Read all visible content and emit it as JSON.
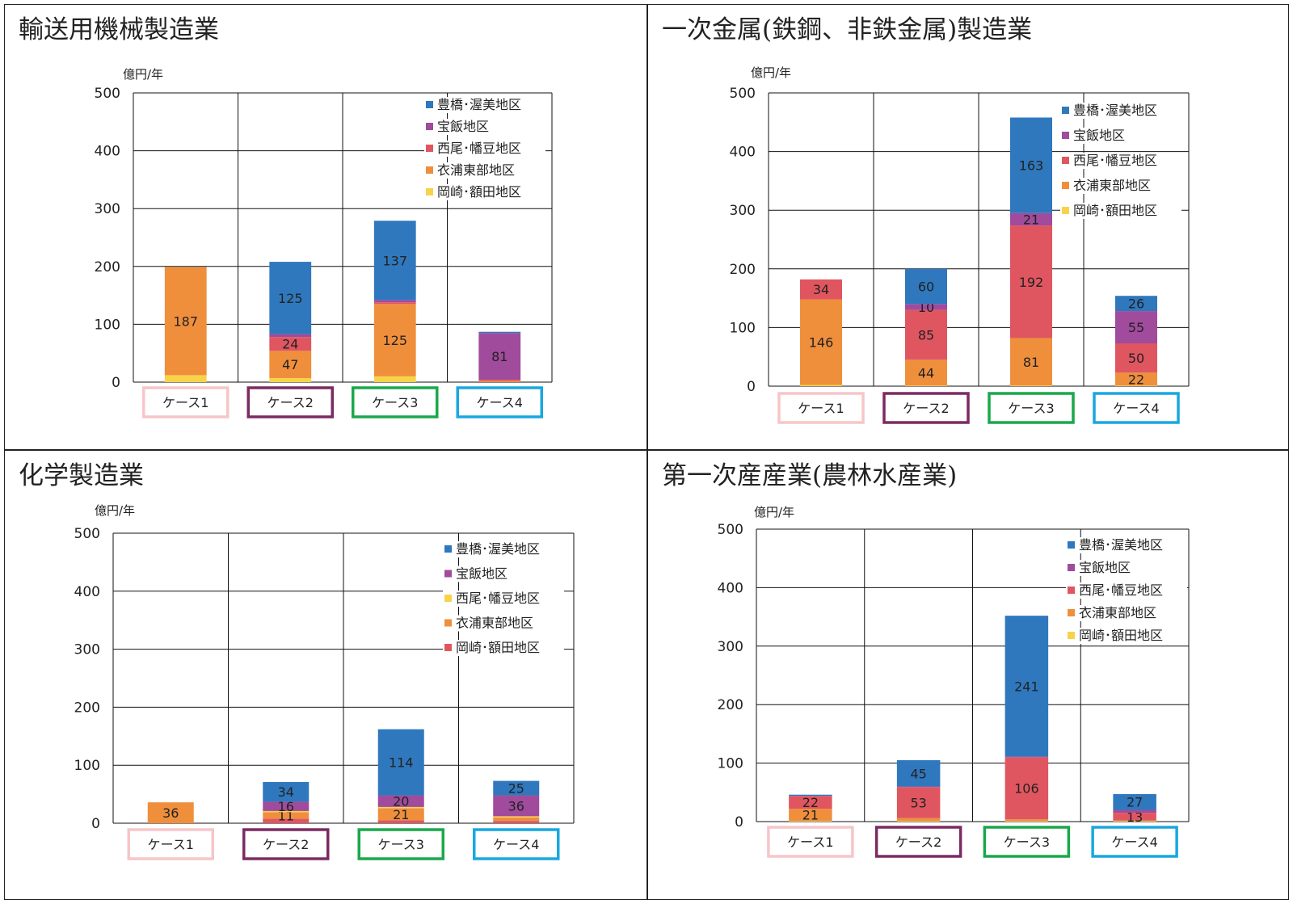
{
  "colors": {
    "blue": "#2f78be",
    "purple": "#a04b9c",
    "red": "#e05660",
    "orange": "#ef8f3c",
    "yellow": "#f7d34a",
    "case_boxes": [
      "#f6c6c8",
      "#7b2b62",
      "#1aa84b",
      "#1aa7e0"
    ]
  },
  "chart_data": [
    {
      "type": "bar",
      "title": "輸送用機械製造業",
      "ylabel": "億円/年",
      "ylim": [
        0,
        500
      ],
      "yticks": [
        "0",
        "100",
        "200",
        "300",
        "400",
        "500"
      ],
      "categories": [
        "ケース1",
        "ケース2",
        "ケース3",
        "ケース4"
      ],
      "legend": [
        {
          "label": "豊橋･渥美地区",
          "color": "blue"
        },
        {
          "label": "宝飯地区",
          "color": "purple"
        },
        {
          "label": "西尾･幡豆地区",
          "color": "red"
        },
        {
          "label": "衣浦東部地区",
          "color": "orange"
        },
        {
          "label": "岡崎･額田地区",
          "color": "yellow"
        }
      ],
      "series": [
        {
          "name": "岡崎･額田地区",
          "color": "yellow",
          "values": [
            12,
            7,
            10,
            0
          ],
          "labels": [
            "",
            "",
            "",
            ""
          ]
        },
        {
          "name": "衣浦東部地区",
          "color": "orange",
          "values": [
            187,
            47,
            125,
            2
          ],
          "labels": [
            "187",
            "47",
            "125",
            ""
          ]
        },
        {
          "name": "西尾･幡豆地区",
          "color": "red",
          "values": [
            0,
            24,
            3,
            2
          ],
          "labels": [
            "",
            "24",
            "",
            ""
          ]
        },
        {
          "name": "宝飯地区",
          "color": "purple",
          "values": [
            0,
            5,
            4,
            81
          ],
          "labels": [
            "",
            "",
            "",
            "81"
          ]
        },
        {
          "name": "豊橋･渥美地区",
          "color": "blue",
          "values": [
            0,
            125,
            137,
            2
          ],
          "labels": [
            "",
            "125",
            "137",
            ""
          ]
        }
      ]
    },
    {
      "type": "bar",
      "title": "一次金属(鉄鋼、非鉄金属)製造業",
      "ylabel": "億円/年",
      "ylim": [
        0,
        500
      ],
      "yticks": [
        "0",
        "100",
        "200",
        "300",
        "400",
        "500"
      ],
      "categories": [
        "ケース1",
        "ケース2",
        "ケース3",
        "ケース4"
      ],
      "legend": [
        {
          "label": "豊橋･渥美地区",
          "color": "blue"
        },
        {
          "label": "宝飯地区",
          "color": "purple"
        },
        {
          "label": "西尾･幡豆地区",
          "color": "red"
        },
        {
          "label": "衣浦東部地区",
          "color": "orange"
        },
        {
          "label": "岡崎･額田地区",
          "color": "yellow"
        }
      ],
      "series": [
        {
          "name": "岡崎･額田地区",
          "color": "yellow",
          "values": [
            2,
            1,
            1,
            1
          ],
          "labels": [
            "",
            "",
            "",
            ""
          ]
        },
        {
          "name": "衣浦東部地区",
          "color": "orange",
          "values": [
            146,
            44,
            81,
            22
          ],
          "labels": [
            "146",
            "44",
            "81",
            "22"
          ]
        },
        {
          "name": "西尾･幡豆地区",
          "color": "red",
          "values": [
            34,
            85,
            192,
            50
          ],
          "labels": [
            "34",
            "85",
            "192",
            "50"
          ]
        },
        {
          "name": "宝飯地区",
          "color": "purple",
          "values": [
            0,
            10,
            21,
            55
          ],
          "labels": [
            "",
            "10",
            "21",
            "55"
          ]
        },
        {
          "name": "豊橋･渥美地区",
          "color": "blue",
          "values": [
            0,
            60,
            163,
            26
          ],
          "labels": [
            "",
            "60",
            "163",
            "26"
          ]
        }
      ]
    },
    {
      "type": "bar",
      "title": "化学製造業",
      "ylabel": "億円/年",
      "ylim": [
        0,
        500
      ],
      "yticks": [
        "0",
        "100",
        "200",
        "300",
        "400",
        "500"
      ],
      "categories": [
        "ケース1",
        "ケース2",
        "ケース3",
        "ケース4"
      ],
      "legend": [
        {
          "label": "豊橋･渥美地区",
          "color": "blue"
        },
        {
          "label": "宝飯地区",
          "color": "purple"
        },
        {
          "label": "西尾･幡豆地区",
          "color": "yellow"
        },
        {
          "label": "衣浦東部地区",
          "color": "orange"
        },
        {
          "label": "岡崎･額田地区",
          "color": "red"
        }
      ],
      "series": [
        {
          "name": "岡崎･額田地区",
          "color": "red",
          "values": [
            0,
            8,
            5,
            4
          ],
          "labels": [
            "",
            "",
            "",
            ""
          ]
        },
        {
          "name": "衣浦東部地区",
          "color": "orange",
          "values": [
            36,
            11,
            21,
            6
          ],
          "labels": [
            "36",
            "11",
            "21",
            ""
          ]
        },
        {
          "name": "西尾･幡豆地区",
          "color": "yellow",
          "values": [
            0,
            2,
            2,
            2
          ],
          "labels": [
            "",
            "",
            "",
            ""
          ]
        },
        {
          "name": "宝飯地区",
          "color": "purple",
          "values": [
            0,
            16,
            20,
            36
          ],
          "labels": [
            "",
            "16",
            "20",
            "36"
          ]
        },
        {
          "name": "豊橋･渥美地区",
          "color": "blue",
          "values": [
            0,
            34,
            114,
            25
          ],
          "labels": [
            "",
            "34",
            "114",
            "25"
          ]
        }
      ]
    },
    {
      "type": "bar",
      "title": "第一次産産業(農林水産業)",
      "ylabel": "億円/年",
      "ylim": [
        0,
        500
      ],
      "yticks": [
        "0",
        "100",
        "200",
        "300",
        "400",
        "500"
      ],
      "categories": [
        "ケース1",
        "ケース2",
        "ケース3",
        "ケース4"
      ],
      "legend": [
        {
          "label": "豊橋･渥美地区",
          "color": "blue"
        },
        {
          "label": "宝飯地区",
          "color": "purple"
        },
        {
          "label": "西尾･幡豆地区",
          "color": "red"
        },
        {
          "label": "衣浦東部地区",
          "color": "orange"
        },
        {
          "label": "岡崎･額田地区",
          "color": "yellow"
        }
      ],
      "series": [
        {
          "name": "岡崎･額田地区",
          "color": "yellow",
          "values": [
            1,
            1,
            1,
            1
          ],
          "labels": [
            "",
            "",
            "",
            ""
          ]
        },
        {
          "name": "衣浦東部地区",
          "color": "orange",
          "values": [
            21,
            5,
            3,
            1
          ],
          "labels": [
            "21",
            "",
            "",
            ""
          ]
        },
        {
          "name": "西尾･幡豆地区",
          "color": "red",
          "values": [
            22,
            53,
            106,
            13
          ],
          "labels": [
            "22",
            "53",
            "106",
            "13"
          ]
        },
        {
          "name": "宝飯地区",
          "color": "purple",
          "values": [
            0,
            1,
            1,
            5
          ],
          "labels": [
            "",
            "",
            "",
            ""
          ]
        },
        {
          "name": "豊橋･渥美地区",
          "color": "blue",
          "values": [
            2,
            45,
            241,
            27
          ],
          "labels": [
            "",
            "45",
            "241",
            "27"
          ]
        }
      ]
    }
  ]
}
